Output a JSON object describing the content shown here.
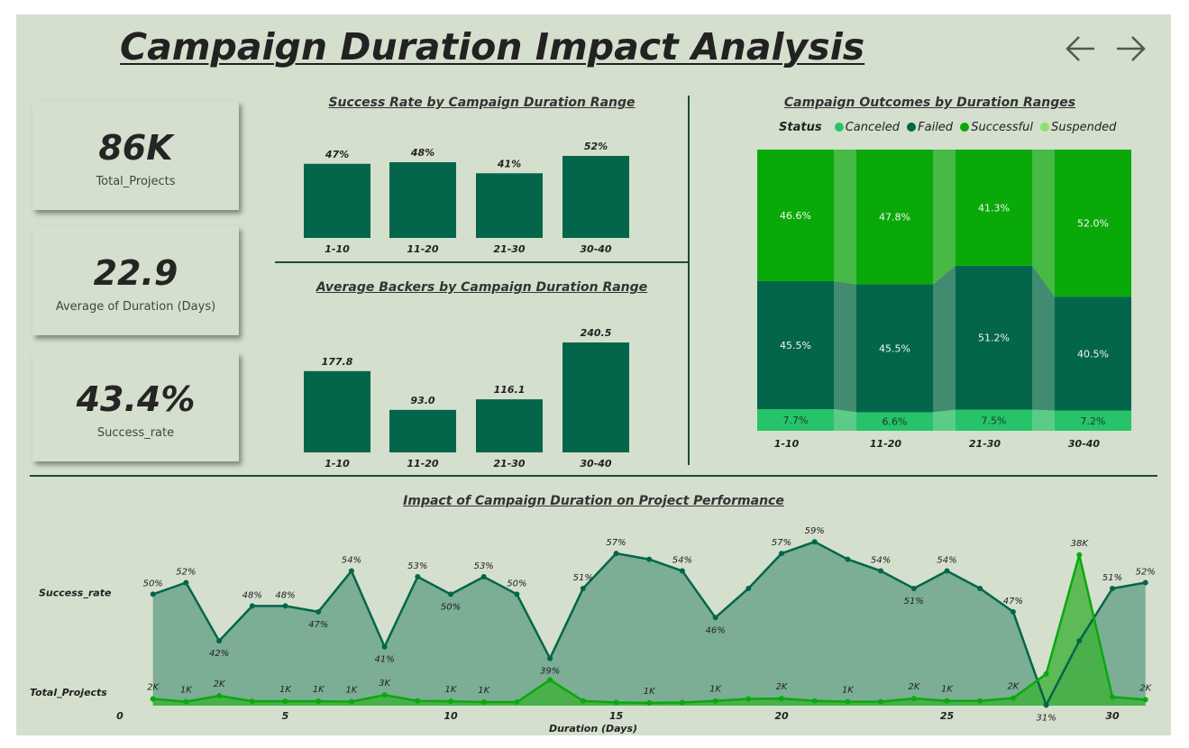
{
  "header": {
    "title": "Campaign Duration Impact Analysis"
  },
  "kpis": [
    {
      "value": "86K",
      "label": "Total_Projects"
    },
    {
      "value": "22.9",
      "label": "Average of Duration (Days)"
    },
    {
      "value": "43.4%",
      "label": "Success_rate"
    }
  ],
  "colors": {
    "bar": "#03664a",
    "canceled": "#27c36a",
    "failed": "#03664a",
    "successful": "#0aa90a",
    "suspended": "#8ee06c",
    "area": "#7bae95"
  },
  "chart_data": [
    {
      "type": "bar",
      "title": "Success Rate by Campaign Duration Range",
      "categories": [
        "1-10",
        "11-20",
        "21-30",
        "30-40"
      ],
      "values": [
        47,
        48,
        41,
        52
      ],
      "value_labels": [
        "47%",
        "48%",
        "41%",
        "52%"
      ],
      "ylim": [
        0,
        52
      ]
    },
    {
      "type": "bar",
      "title": "Average Backers by Campaign Duration Range",
      "categories": [
        "1-10",
        "11-20",
        "21-30",
        "30-40"
      ],
      "values": [
        177.8,
        93.0,
        116.1,
        240.5
      ],
      "value_labels": [
        "177.8",
        "93.0",
        "116.1",
        "240.5"
      ],
      "ylim": [
        0,
        240.5
      ]
    },
    {
      "type": "bar",
      "stacked": "100%",
      "title": "Campaign Outcomes by Duration Ranges",
      "legend_title": "Status",
      "legend_position": "top",
      "categories": [
        "1-10",
        "11-20",
        "21-30",
        "30-40"
      ],
      "series": [
        {
          "name": "Canceled",
          "values": [
            7.7,
            6.6,
            7.5,
            7.2
          ],
          "labels": [
            "7.7%",
            "6.6%",
            "7.5%",
            "7.2%"
          ]
        },
        {
          "name": "Failed",
          "values": [
            45.5,
            45.5,
            51.2,
            40.5
          ],
          "labels": [
            "45.5%",
            "45.5%",
            "51.2%",
            "40.5%"
          ]
        },
        {
          "name": "Successful",
          "values": [
            46.6,
            47.8,
            41.3,
            52.0
          ],
          "labels": [
            "46.6%",
            "47.8%",
            "41.3%",
            "52.0%"
          ]
        },
        {
          "name": "Suspended",
          "values": [
            0.2,
            0.1,
            0.0,
            0.3
          ]
        }
      ]
    },
    {
      "type": "line",
      "title": "Impact of Campaign Duration on Project Performance",
      "xlabel": "Duration (Days)",
      "x": [
        1,
        2,
        3,
        4,
        5,
        6,
        7,
        8,
        9,
        10,
        11,
        12,
        13,
        14,
        15,
        16,
        17,
        18,
        19,
        20,
        21,
        22,
        23,
        24,
        25,
        26,
        27,
        28,
        29,
        30,
        31
      ],
      "xticks": [
        0,
        5,
        10,
        15,
        20,
        25,
        30
      ],
      "xlim": [
        0,
        31
      ],
      "series": [
        {
          "name": "Success_rate",
          "values": [
            50,
            52,
            42,
            48,
            48,
            47,
            54,
            41,
            53,
            50,
            53,
            50,
            39,
            51,
            57,
            56,
            54,
            46,
            51,
            57,
            59,
            56,
            54,
            51,
            54,
            51,
            47,
            31,
            42,
            51,
            52
          ],
          "labels": [
            "50%",
            "52%",
            "42%",
            "48%",
            "48%",
            "47%",
            "54%",
            "41%",
            "53%",
            "50%",
            "53%",
            "50%",
            "39%",
            "51%",
            "57%",
            "",
            "54%",
            "46%",
            "",
            "57%",
            "59%",
            "",
            "54%",
            "51%",
            "54%",
            "",
            "47%",
            "31%",
            "",
            "51%",
            "52%"
          ]
        },
        {
          "name": "Total_Projects",
          "values": [
            1.7,
            1.0,
            2.5,
            1.1,
            1.1,
            1.1,
            1.0,
            2.7,
            1.2,
            1.1,
            0.9,
            0.9,
            6.5,
            1.2,
            0.8,
            0.7,
            0.8,
            1.2,
            1.7,
            1.8,
            1.2,
            1.0,
            1.0,
            1.8,
            1.2,
            1.2,
            1.9,
            8.0,
            38.0,
            2.2,
            1.5
          ],
          "labels": [
            "2K",
            "1K",
            "2K",
            "",
            "1K",
            "1K",
            "1K",
            "3K",
            "",
            "1K",
            "1K",
            "",
            "",
            "",
            "",
            "1K",
            "",
            "1K",
            "",
            "2K",
            "",
            "1K",
            "",
            "2K",
            "1K",
            "",
            "2K",
            "",
            "38K",
            "",
            "2K"
          ]
        }
      ]
    }
  ]
}
